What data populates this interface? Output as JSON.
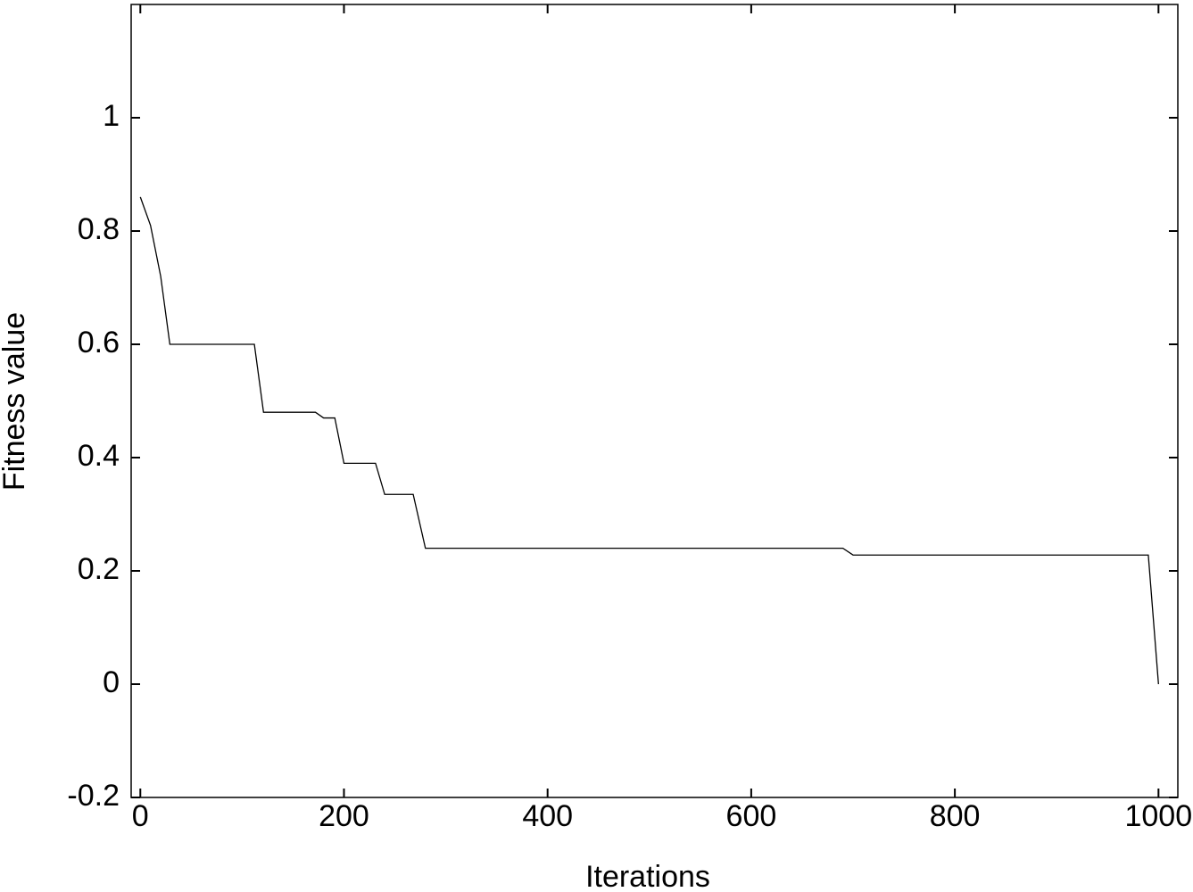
{
  "chart_data": {
    "type": "line",
    "xlabel": "Iterations",
    "ylabel": "Fitness value",
    "x": [
      0,
      10,
      20,
      29,
      112,
      121,
      172,
      180,
      191,
      200,
      231,
      240,
      268,
      280,
      690,
      700,
      990,
      1000
    ],
    "series": [
      {
        "color": "#000000",
        "values": [
          0.86,
          0.81,
          0.72,
          0.6,
          0.6,
          0.48,
          0.48,
          0.47,
          0.47,
          0.39,
          0.39,
          0.335,
          0.335,
          0.24,
          0.24,
          0.228,
          0.228,
          0
        ]
      }
    ],
    "xlim": [
      -9,
      1019
    ],
    "ylim": [
      -0.2,
      1.2
    ],
    "xticks": [
      0,
      200,
      400,
      600,
      800,
      1000
    ],
    "yticks": [
      -0.2,
      0,
      0.2,
      0.4,
      0.6,
      0.8,
      1
    ],
    "grid": false
  }
}
